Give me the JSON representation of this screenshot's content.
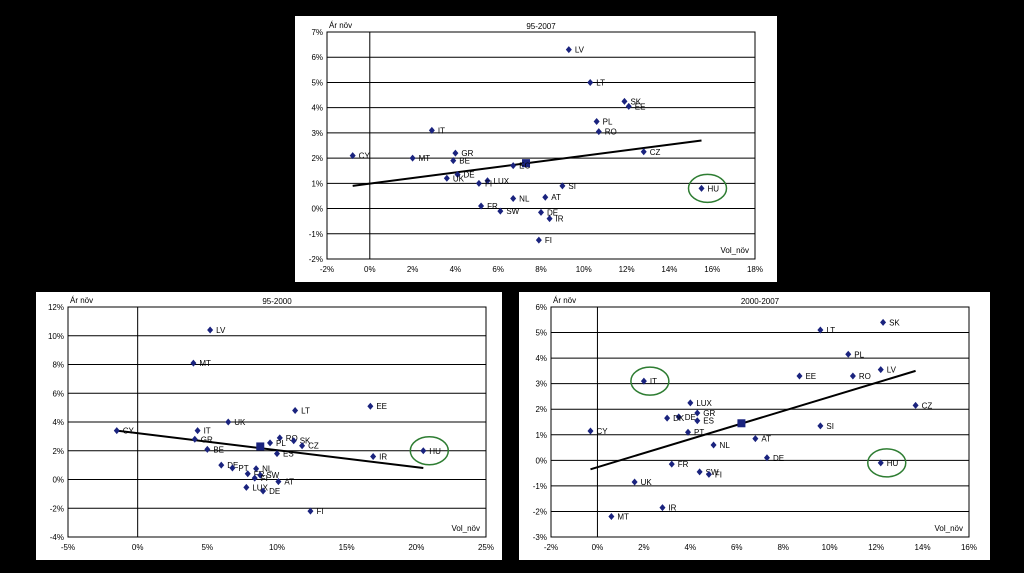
{
  "chart_data": [
    {
      "type": "scatter",
      "title": "95-2007",
      "ylabel": "Ár növ",
      "xlabel": "Vol_növ",
      "xlim": [
        -2,
        18
      ],
      "ylim": [
        -2,
        7
      ],
      "x_ticks": [
        "-2%",
        "0%",
        "2%",
        "4%",
        "6%",
        "8%",
        "10%",
        "12%",
        "14%",
        "16%",
        "18%"
      ],
      "y_ticks": [
        "-2%",
        "-1%",
        "0%",
        "1%",
        "2%",
        "3%",
        "4%",
        "5%",
        "6%",
        "7%"
      ],
      "grid": "horizontal",
      "points": [
        {
          "label": "LV",
          "x": 9.3,
          "y": 6.3
        },
        {
          "label": "LT",
          "x": 10.3,
          "y": 5.0
        },
        {
          "label": "SK",
          "x": 11.9,
          "y": 4.25
        },
        {
          "label": "EE",
          "x": 12.1,
          "y": 4.05
        },
        {
          "label": "PL",
          "x": 10.6,
          "y": 3.45
        },
        {
          "label": "RO",
          "x": 10.7,
          "y": 3.05
        },
        {
          "label": "IT",
          "x": 2.9,
          "y": 3.1
        },
        {
          "label": "CZ",
          "x": 12.8,
          "y": 2.25
        },
        {
          "label": "GR",
          "x": 4.0,
          "y": 2.2
        },
        {
          "label": "CY",
          "x": -0.8,
          "y": 2.1
        },
        {
          "label": "MT",
          "x": 2.0,
          "y": 2.0
        },
        {
          "label": "BE",
          "x": 3.9,
          "y": 1.9
        },
        {
          "label": "EC",
          "x": 6.7,
          "y": 1.7
        },
        {
          "label": "DE",
          "x": 4.1,
          "y": 1.35
        },
        {
          "label": "UK",
          "x": 3.6,
          "y": 1.2
        },
        {
          "label": "LUX",
          "x": 5.5,
          "y": 1.1
        },
        {
          "label": "FI",
          "x": 5.1,
          "y": 1.0
        },
        {
          "label": "SI",
          "x": 9.0,
          "y": 0.9
        },
        {
          "label": "HU",
          "x": 15.5,
          "y": 0.8
        },
        {
          "label": "AT",
          "x": 8.2,
          "y": 0.45
        },
        {
          "label": "NL",
          "x": 6.7,
          "y": 0.4
        },
        {
          "label": "FR",
          "x": 5.2,
          "y": 0.1
        },
        {
          "label": "SW",
          "x": 6.1,
          "y": -0.1
        },
        {
          "label": "DE",
          "x": 8.0,
          "y": -0.15
        },
        {
          "label": "IR",
          "x": 8.4,
          "y": -0.4
        },
        {
          "label": "FI",
          "x": 7.9,
          "y": -1.25
        }
      ],
      "eu_point": {
        "x": 7.3,
        "y": 1.8
      },
      "trendline": {
        "x": [
          -0.8,
          15.5
        ],
        "y": [
          0.9,
          2.7
        ]
      },
      "highlight": [
        "HU"
      ]
    },
    {
      "type": "scatter",
      "title": "95-2000",
      "ylabel": "Ár növ",
      "xlabel": "Vol_növ",
      "xlim": [
        -5,
        25
      ],
      "ylim": [
        -4,
        12
      ],
      "x_ticks": [
        "-5%",
        "0%",
        "5%",
        "10%",
        "15%",
        "20%",
        "25%"
      ],
      "y_ticks": [
        "-4%",
        "-2%",
        "0%",
        "2%",
        "4%",
        "6%",
        "8%",
        "10%",
        "12%"
      ],
      "grid": "horizontal",
      "points": [
        {
          "label": "LV",
          "x": 5.2,
          "y": 10.4
        },
        {
          "label": "MT",
          "x": 4.0,
          "y": 8.1
        },
        {
          "label": "EE",
          "x": 16.7,
          "y": 5.1
        },
        {
          "label": "LT",
          "x": 11.3,
          "y": 4.8
        },
        {
          "label": "UK",
          "x": 6.5,
          "y": 4.0
        },
        {
          "label": "IT",
          "x": 4.3,
          "y": 3.4
        },
        {
          "label": "CY",
          "x": -1.5,
          "y": 3.4
        },
        {
          "label": "GR",
          "x": 4.1,
          "y": 2.8
        },
        {
          "label": "RO",
          "x": 10.2,
          "y": 2.9
        },
        {
          "label": "PL",
          "x": 9.5,
          "y": 2.55
        },
        {
          "label": "SK",
          "x": 11.2,
          "y": 2.7
        },
        {
          "label": "CZ",
          "x": 11.8,
          "y": 2.35
        },
        {
          "label": "BE",
          "x": 5.0,
          "y": 2.1
        },
        {
          "label": "HU",
          "x": 20.5,
          "y": 2.0
        },
        {
          "label": "ES",
          "x": 10.0,
          "y": 1.8
        },
        {
          "label": "IR",
          "x": 16.9,
          "y": 1.6
        },
        {
          "label": "DE",
          "x": 6.0,
          "y": 1.0
        },
        {
          "label": "PT",
          "x": 6.8,
          "y": 0.8
        },
        {
          "label": "NL",
          "x": 8.5,
          "y": 0.75
        },
        {
          "label": "FR",
          "x": 7.9,
          "y": 0.4
        },
        {
          "label": "SW",
          "x": 8.8,
          "y": 0.3
        },
        {
          "label": "FI",
          "x": 8.4,
          "y": 0.1
        },
        {
          "label": "AT",
          "x": 10.1,
          "y": -0.15
        },
        {
          "label": "LUX",
          "x": 7.8,
          "y": -0.55
        },
        {
          "label": "DE",
          "x": 9.0,
          "y": -0.8
        },
        {
          "label": "FI",
          "x": 12.4,
          "y": -2.2
        }
      ],
      "eu_point": {
        "x": 8.8,
        "y": 2.3
      },
      "trendline": {
        "x": [
          -1.5,
          20.5
        ],
        "y": [
          3.4,
          0.8
        ]
      },
      "highlight": [
        "HU"
      ]
    },
    {
      "type": "scatter",
      "title": "2000-2007",
      "ylabel": "Ár növ",
      "xlabel": "Vol_növ",
      "xlim": [
        -2,
        16
      ],
      "ylim": [
        -3,
        6
      ],
      "x_ticks": [
        "-2%",
        "0%",
        "2%",
        "4%",
        "6%",
        "8%",
        "10%",
        "12%",
        "14%",
        "16%"
      ],
      "y_ticks": [
        "-3%",
        "-2%",
        "-1%",
        "0%",
        "1%",
        "2%",
        "3%",
        "4%",
        "5%",
        "6%"
      ],
      "grid": "horizontal",
      "points": [
        {
          "label": "SK",
          "x": 12.3,
          "y": 5.4
        },
        {
          "label": "LT",
          "x": 9.6,
          "y": 5.1
        },
        {
          "label": "PL",
          "x": 10.8,
          "y": 4.15
        },
        {
          "label": "LV",
          "x": 12.2,
          "y": 3.55
        },
        {
          "label": "EE",
          "x": 8.7,
          "y": 3.3
        },
        {
          "label": "RO",
          "x": 11.0,
          "y": 3.3
        },
        {
          "label": "IT",
          "x": 2.0,
          "y": 3.1
        },
        {
          "label": "LUX",
          "x": 4.0,
          "y": 2.25
        },
        {
          "label": "CZ",
          "x": 13.7,
          "y": 2.15
        },
        {
          "label": "GR",
          "x": 4.3,
          "y": 1.85
        },
        {
          "label": "DE",
          "x": 3.5,
          "y": 1.7
        },
        {
          "label": "DK",
          "x": 3.0,
          "y": 1.65
        },
        {
          "label": "ES",
          "x": 4.3,
          "y": 1.55
        },
        {
          "label": "SI",
          "x": 9.6,
          "y": 1.35
        },
        {
          "label": "CY",
          "x": -0.3,
          "y": 1.15
        },
        {
          "label": "PT",
          "x": 3.9,
          "y": 1.1
        },
        {
          "label": "AT",
          "x": 6.8,
          "y": 0.85
        },
        {
          "label": "NL",
          "x": 5.0,
          "y": 0.6
        },
        {
          "label": "DE",
          "x": 7.3,
          "y": 0.1
        },
        {
          "label": "HU",
          "x": 12.2,
          "y": -0.1
        },
        {
          "label": "FR",
          "x": 3.2,
          "y": -0.15
        },
        {
          "label": "SW",
          "x": 4.4,
          "y": -0.45
        },
        {
          "label": "FI",
          "x": 4.8,
          "y": -0.55
        },
        {
          "label": "UK",
          "x": 1.6,
          "y": -0.85
        },
        {
          "label": "IR",
          "x": 2.8,
          "y": -1.85
        },
        {
          "label": "MT",
          "x": 0.6,
          "y": -2.2
        }
      ],
      "eu_point": {
        "x": 6.2,
        "y": 1.45
      },
      "trendline": {
        "x": [
          -0.3,
          13.7
        ],
        "y": [
          -0.35,
          3.5
        ]
      },
      "highlight": [
        "IT",
        "HU"
      ]
    }
  ]
}
